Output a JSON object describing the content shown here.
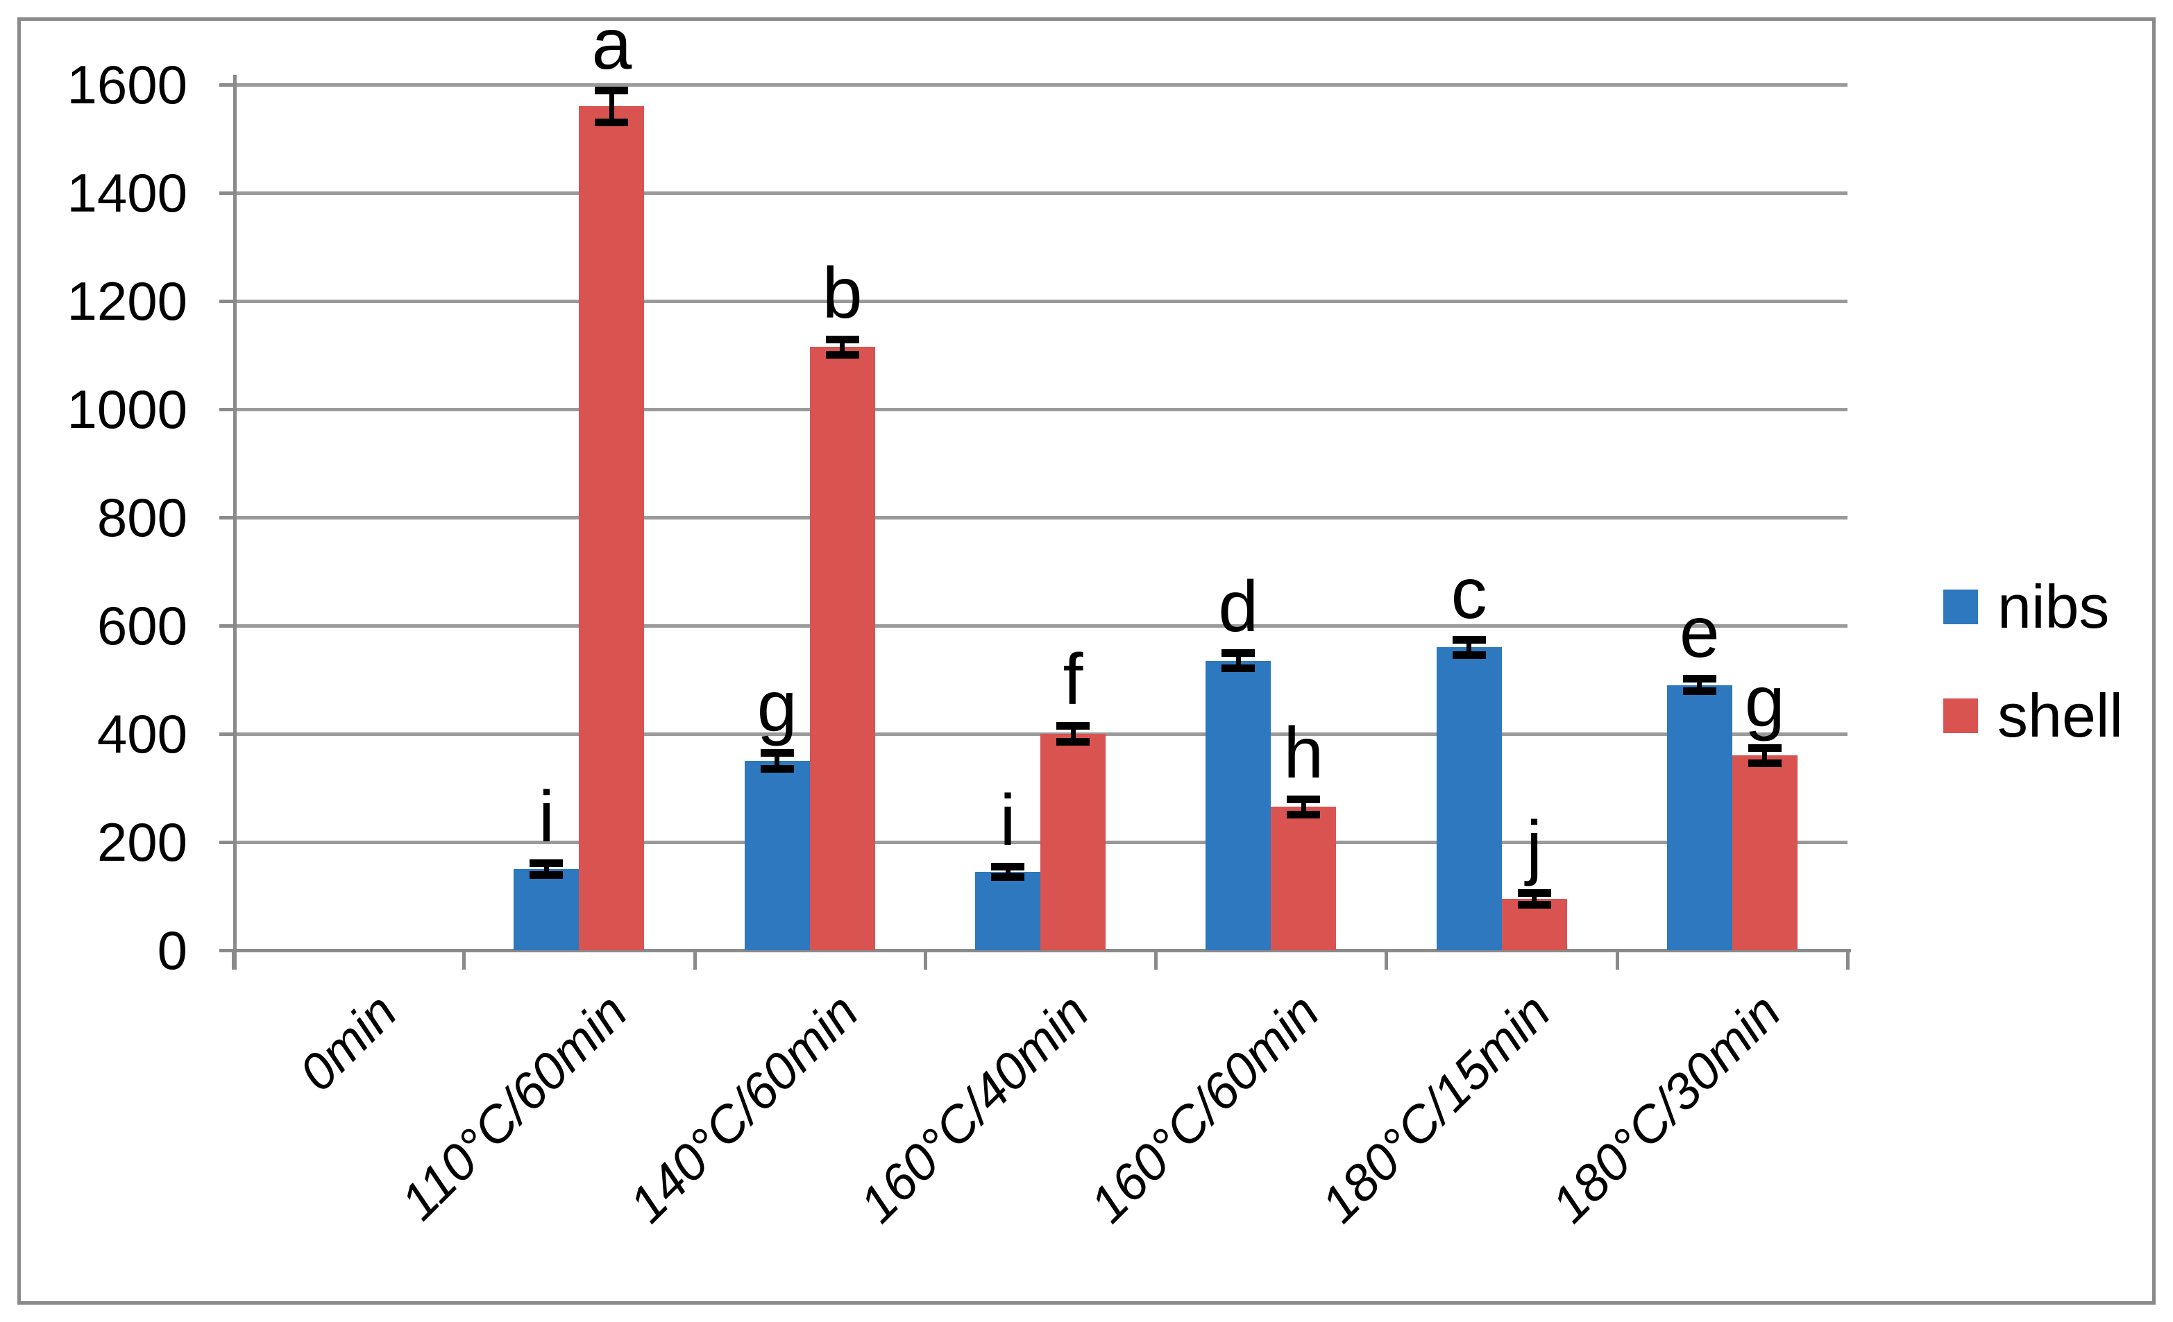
{
  "chart_data": {
    "type": "bar",
    "title": "",
    "categories": [
      "0min",
      "110°C/60min",
      "140°C/60min",
      "160°C/40min",
      "160°C/60min",
      "180°C/15min",
      "180°C/30min"
    ],
    "series": [
      {
        "name": "nibs",
        "color": "#2D78BE",
        "values": [
          0,
          150,
          350,
          145,
          535,
          560,
          490
        ],
        "errors": [
          0,
          12,
          15,
          10,
          15,
          15,
          12
        ],
        "bar_labels": [
          "",
          "i",
          "g",
          "i",
          "d",
          "c",
          "e"
        ]
      },
      {
        "name": "shell",
        "color": "#D95351",
        "values": [
          0,
          1560,
          1115,
          400,
          265,
          95,
          360
        ],
        "errors": [
          0,
          30,
          15,
          15,
          15,
          12,
          15
        ],
        "bar_labels": [
          "",
          "a",
          "b",
          "f",
          "h",
          "j",
          "g"
        ]
      }
    ],
    "ylim": [
      0,
      1600
    ],
    "ytick_labels": [
      "0",
      "200",
      "400",
      "600",
      "800",
      "1000",
      "1200",
      "1400",
      "1600"
    ],
    "grid": true,
    "legend_position": "right",
    "colors": {
      "gridline": "#9a9a9a",
      "axis": "#8a8a8a",
      "frame": "#8a8a8a",
      "text": "#000000",
      "error_bar": "#000000"
    }
  },
  "legend": {
    "items": [
      {
        "label": "nibs",
        "color": "#2D78BE"
      },
      {
        "label": "shell",
        "color": "#D95351"
      }
    ]
  }
}
